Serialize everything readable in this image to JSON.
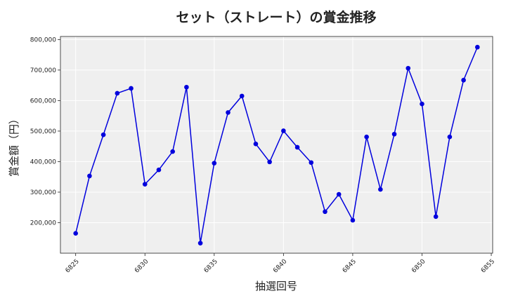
{
  "chart_data": {
    "type": "line",
    "title": "セット（ストレート）の賞金推移",
    "xlabel": "抽選回号",
    "ylabel": "賞金額（円）",
    "xlim": [
      6823.9,
      6855.1
    ],
    "ylim": [
      100000,
      810000
    ],
    "xticks": [
      6825,
      6830,
      6835,
      6840,
      6845,
      6850,
      6855
    ],
    "yticks": [
      200000,
      300000,
      400000,
      500000,
      600000,
      700000,
      800000
    ],
    "ytick_labels": [
      "200,000",
      "300,000",
      "400,000",
      "500,000",
      "600,000",
      "700,000",
      "800,000"
    ],
    "grid": true,
    "series_color": "#0000dd",
    "plot_background": "#efefef",
    "series": [
      {
        "x": [
          6825,
          6826,
          6827,
          6828,
          6829,
          6830,
          6831,
          6832,
          6833,
          6834,
          6835,
          6836,
          6837,
          6838,
          6839,
          6840,
          6841,
          6842,
          6843,
          6844,
          6845,
          6846,
          6847,
          6848,
          6849,
          6850,
          6851,
          6852,
          6853,
          6854
        ],
        "values": [
          165000,
          353000,
          488000,
          624000,
          640000,
          326000,
          373000,
          433000,
          644000,
          133000,
          395000,
          561000,
          615000,
          458000,
          399000,
          501000,
          447000,
          397000,
          236000,
          293000,
          208000,
          481000,
          309000,
          490000,
          706000,
          589000,
          220000,
          481000,
          667000,
          775000
        ]
      }
    ]
  }
}
